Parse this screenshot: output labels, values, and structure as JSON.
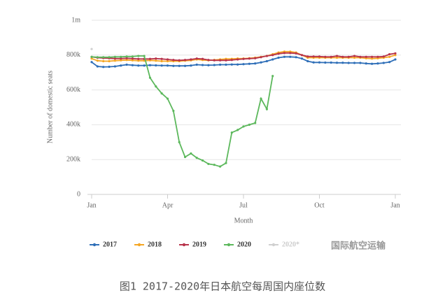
{
  "chart_data": {
    "type": "line",
    "x_label": "Month",
    "y_label": "Number of domestic seats",
    "x": [
      1,
      2,
      3,
      4,
      5,
      6,
      7,
      8,
      9,
      10,
      11,
      12,
      13,
      14,
      15,
      16,
      17,
      18,
      19,
      20,
      21,
      22,
      23,
      24,
      25,
      26,
      27,
      28,
      29,
      30,
      31,
      32,
      33,
      34,
      35,
      36,
      37,
      38,
      39,
      40,
      41,
      42,
      43,
      44,
      45,
      46,
      47,
      48,
      49,
      50,
      51,
      52,
      53
    ],
    "xlim": [
      1,
      53
    ],
    "xticks": [
      {
        "value": 1,
        "label": "Jan"
      },
      {
        "value": 14,
        "label": "Apr"
      },
      {
        "value": 27,
        "label": "Jul"
      },
      {
        "value": 40,
        "label": "Oct"
      },
      {
        "value": 53,
        "label": "Jan"
      }
    ],
    "ylim": [
      0,
      1000000
    ],
    "yticks": [
      0,
      {
        "value": 200000,
        "label": "200k"
      },
      {
        "value": 400000,
        "label": "400k"
      },
      {
        "value": 600000,
        "label": "600k"
      },
      {
        "value": 800000,
        "label": "800k"
      },
      {
        "value": 1000000,
        "label": "1m"
      }
    ],
    "grid": true,
    "series": [
      {
        "name": "2017",
        "color": "#2f6fb8",
        "values": [
          760000,
          735000,
          732000,
          733000,
          735000,
          740000,
          745000,
          742000,
          740000,
          740000,
          742000,
          741000,
          740000,
          740000,
          738000,
          738000,
          738000,
          740000,
          745000,
          743000,
          742000,
          743000,
          745000,
          745000,
          746000,
          746000,
          748000,
          750000,
          752000,
          758000,
          765000,
          775000,
          785000,
          790000,
          790000,
          788000,
          780000,
          765000,
          758000,
          758000,
          757000,
          757000,
          756000,
          756000,
          755000,
          755000,
          755000,
          752000,
          750000,
          752000,
          755000,
          760000,
          775000
        ]
      },
      {
        "name": "2018",
        "color": "#f5a623",
        "values": [
          780000,
          768000,
          765000,
          765000,
          768000,
          770000,
          772000,
          770000,
          768000,
          768000,
          770000,
          768000,
          765000,
          765000,
          765000,
          765000,
          768000,
          770000,
          775000,
          772000,
          770000,
          772000,
          775000,
          778000,
          778000,
          780000,
          780000,
          782000,
          785000,
          790000,
          795000,
          805000,
          815000,
          820000,
          820000,
          815000,
          800000,
          785000,
          785000,
          785000,
          785000,
          785000,
          785000,
          785000,
          785000,
          785000,
          785000,
          782000,
          780000,
          782000,
          785000,
          790000,
          800000
        ]
      },
      {
        "name": "2019",
        "color": "#b8334a",
        "values": [
          790000,
          785000,
          783000,
          782000,
          780000,
          780000,
          782000,
          780000,
          778000,
          778000,
          778000,
          780000,
          778000,
          775000,
          772000,
          770000,
          772000,
          775000,
          780000,
          778000,
          772000,
          770000,
          770000,
          770000,
          772000,
          775000,
          778000,
          780000,
          782000,
          788000,
          795000,
          800000,
          808000,
          812000,
          812000,
          810000,
          800000,
          792000,
          792000,
          792000,
          790000,
          790000,
          795000,
          790000,
          790000,
          795000,
          790000,
          790000,
          790000,
          790000,
          792000,
          805000,
          810000
        ]
      },
      {
        "name": "2020",
        "color": "#5cb85c",
        "values": [
          790000,
          788000,
          788000,
          788000,
          790000,
          790000,
          792000,
          792000,
          795000,
          795000,
          670000,
          620000,
          580000,
          550000,
          480000,
          300000,
          215000,
          235000,
          210000,
          195000,
          175000,
          170000,
          160000,
          180000,
          355000,
          370000,
          390000,
          400000,
          410000,
          550000,
          490000,
          680000,
          null,
          null,
          null,
          null,
          null,
          null,
          null,
          null,
          null,
          null,
          null,
          null,
          null,
          null,
          null,
          null,
          null,
          null,
          null,
          null,
          null
        ]
      },
      {
        "name": "2020*",
        "color": "#d0d0d0",
        "values": [
          835000,
          null,
          null,
          null,
          null,
          null,
          null,
          null,
          null,
          null,
          null,
          null,
          null,
          null,
          null,
          null,
          null,
          null,
          null,
          null,
          null,
          null,
          null,
          null,
          null,
          null,
          null,
          null,
          null,
          null,
          null,
          null,
          null,
          null,
          null,
          null,
          null,
          null,
          null,
          null,
          null,
          null,
          null,
          null,
          null,
          null,
          null,
          null,
          null,
          null,
          null,
          null,
          null
        ]
      }
    ]
  },
  "watermark": "国际航空运输",
  "caption": "图1 2017-2020年日本航空每周国内座位数"
}
